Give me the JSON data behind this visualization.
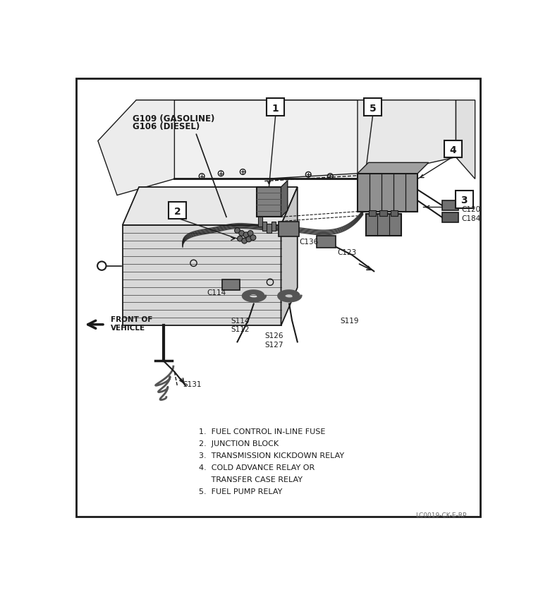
{
  "bg_color": "#ffffff",
  "border_color": "#000000",
  "watermark": "LC0019-CK-E-RP",
  "legend_items": [
    "1.  FUEL CONTROL IN-LINE FUSE",
    "2.  JUNCTION BLOCK",
    "3.  TRANSMISSION KICKDOWN RELAY",
    "4.  COLD ADVANCE RELAY OR",
    "     TRANSFER CASE RELAY",
    "5.  FUEL PUMP RELAY"
  ],
  "label_fontsize": 7.5,
  "legend_fontsize": 8.0
}
